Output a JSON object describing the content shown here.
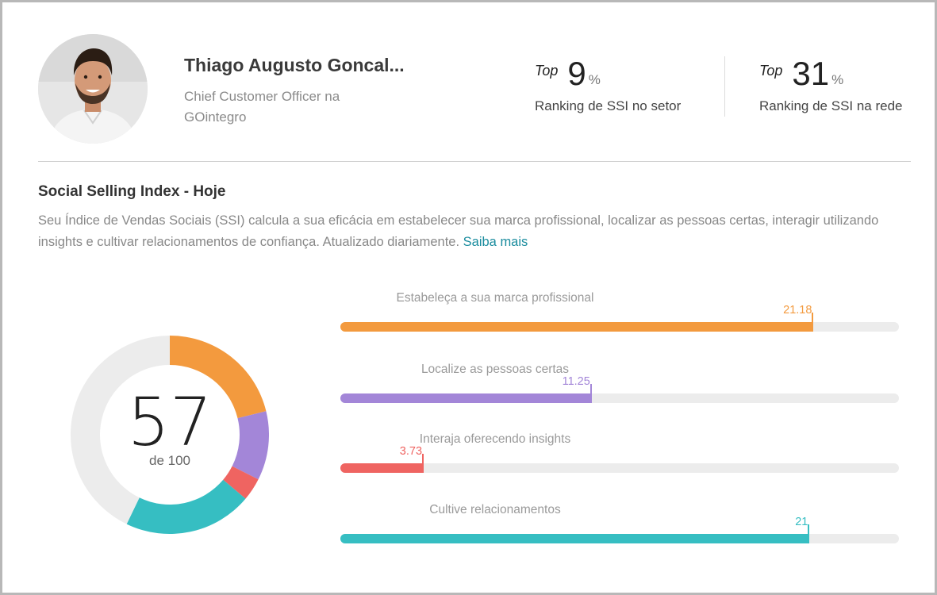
{
  "profile": {
    "name": "Thiago Augusto Goncal...",
    "headline": "Chief Customer Officer na GOintegro"
  },
  "rankings": [
    {
      "prefix": "Top",
      "value": "9",
      "unit": "%",
      "label": "Ranking de SSI no setor"
    },
    {
      "prefix": "Top",
      "value": "31",
      "unit": "%",
      "label": "Ranking de SSI na rede"
    }
  ],
  "ssi": {
    "title": "Social Selling Index - Hoje",
    "description": "Seu Índice de Vendas Sociais (SSI) calcula a sua eficácia em estabelecer sua marca profissional, localizar as pessoas certas, interagir utilizando insights e cultivar relacionamentos de confiança. Atualizado diariamente.",
    "learn_more": "Saiba mais",
    "score": "57",
    "score_sub": "de 100",
    "score_value": 57.16,
    "score_max": 100
  },
  "colors": {
    "orange": "#f39a3e",
    "purple": "#a386d8",
    "red": "#ef6461",
    "teal": "#36bec2",
    "track": "#ececec",
    "link": "#1a8c9e"
  },
  "components": [
    {
      "label": "Estabeleça a sua marca profissional",
      "value": 21.18,
      "display": "21.18",
      "max": 25,
      "color": "#f39a3e"
    },
    {
      "label": "Localize as pessoas certas",
      "value": 11.25,
      "display": "11.25",
      "max": 25,
      "color": "#a386d8"
    },
    {
      "label": "Interaja oferecendo insights",
      "value": 3.73,
      "display": "3.73",
      "max": 25,
      "color": "#ef6461"
    },
    {
      "label": "Cultive relacionamentos",
      "value": 21,
      "display": "21",
      "max": 25,
      "color": "#36bec2"
    }
  ]
}
